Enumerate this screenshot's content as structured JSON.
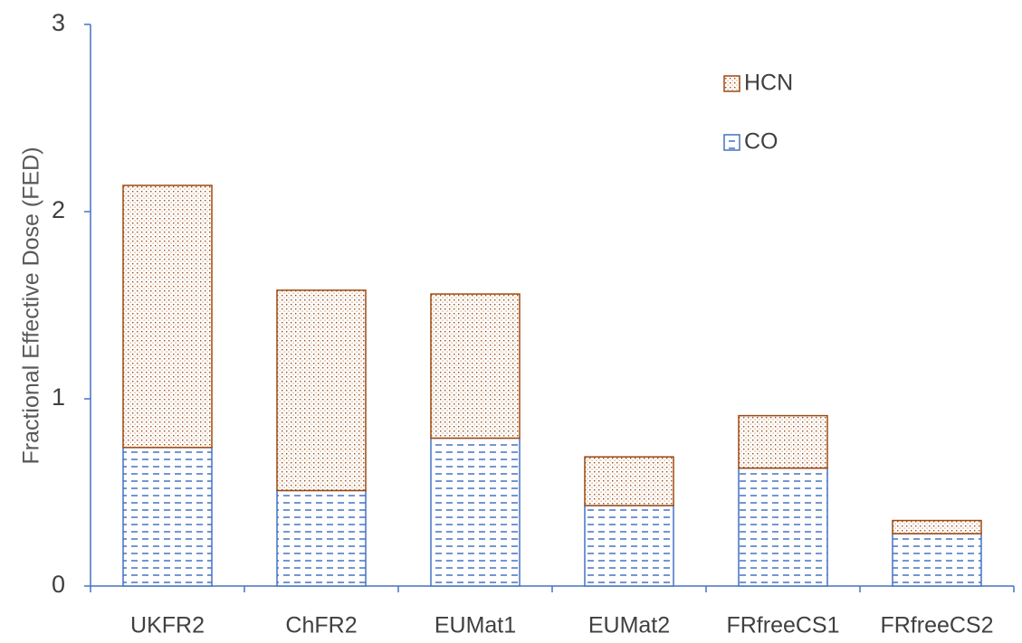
{
  "chart_data": {
    "type": "stacked_bar",
    "y_label": "Fractional Effective Dose (FED)",
    "categories": [
      "UKFR2",
      "ChFR2",
      "EUMat1",
      "EUMat2",
      "FRfreeCS1",
      "FRfreeCS2"
    ],
    "series": [
      {
        "name": "CO",
        "color": "#4472c4",
        "values": [
          0.74,
          0.51,
          0.79,
          0.43,
          0.63,
          0.28
        ]
      },
      {
        "name": "HCN",
        "color": "#9e480e",
        "values": [
          1.4,
          1.07,
          0.77,
          0.26,
          0.28,
          0.07
        ]
      }
    ],
    "ylim": [
      0,
      3
    ],
    "yticks": [
      0,
      1,
      2,
      3
    ],
    "grid": false
  }
}
